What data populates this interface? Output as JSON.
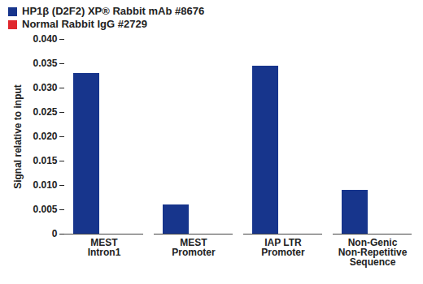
{
  "chart_data": {
    "type": "bar",
    "categories": [
      "MEST\nIntron1",
      "MEST\nPromoter",
      "IAP LTR\nPromoter",
      "Non-Genic\nNon-Repetitive\nSequence"
    ],
    "series": [
      {
        "name": "HP1β (D2F2) XP® Rabbit mAb #8676",
        "color": "#17358c",
        "values": [
          0.033,
          0.006,
          0.0345,
          0.009
        ]
      },
      {
        "name": "Normal Rabbit IgG #2729",
        "color": "#e0282e",
        "values": [
          0,
          0,
          0,
          0
        ]
      }
    ],
    "y_label": "Signal relative to input",
    "ylim": [
      0,
      0.04
    ],
    "yticks": [
      0,
      0.005,
      {
        "value": 0.01,
        "label": "0.010"
      },
      0.015,
      {
        "value": 0.02,
        "label": "0.020"
      },
      0.025,
      {
        "value": 0.03,
        "label": "0.030"
      },
      0.035,
      {
        "value": 0.04,
        "label": "0.040"
      }
    ],
    "legend": "top-left"
  }
}
